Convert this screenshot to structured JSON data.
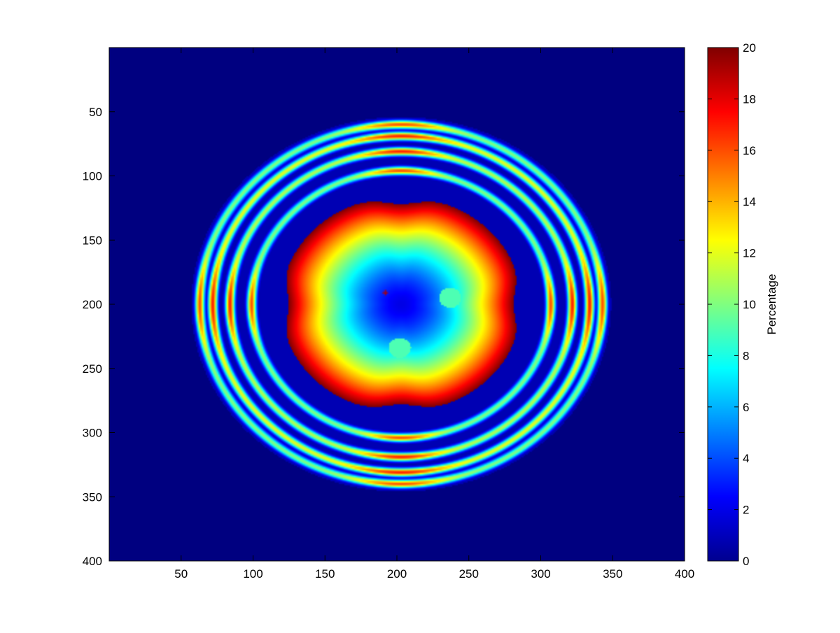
{
  "chart_data": {
    "type": "heatmap",
    "title": "",
    "xlabel": "",
    "ylabel": "",
    "xlim": [
      1,
      400
    ],
    "ylim": [
      400,
      1
    ],
    "y_axis_direction": "reversed",
    "x_ticks": [
      50,
      100,
      150,
      200,
      250,
      300,
      350,
      400
    ],
    "y_ticks": [
      50,
      100,
      150,
      200,
      250,
      300,
      350,
      400
    ],
    "grid": false,
    "colormap": "jet",
    "background_value": 0,
    "colorbar": {
      "label": "Percentage",
      "range": [
        0,
        20
      ],
      "ticks": [
        0,
        2,
        4,
        6,
        8,
        10,
        12,
        14,
        16,
        18,
        20
      ]
    },
    "pattern": {
      "description_units": "pixel index of the 400x400 image",
      "center": [
        203,
        200
      ],
      "outer_radius": 146,
      "center_marker": {
        "x": 192,
        "y": 191,
        "color": "#b00000"
      },
      "rings": [
        {
          "radius": 140,
          "peak_value": 10,
          "peak_at_cardinals": 16
        },
        {
          "radius": 131,
          "peak_value": 12,
          "peak_at_cardinals": 17
        },
        {
          "radius": 119,
          "peak_value": 11,
          "peak_at_cardinals": 17
        },
        {
          "radius": 104,
          "peak_value": 10,
          "peak_at_cardinals": 16
        }
      ],
      "inner_disk": {
        "radius": 84,
        "center_value": 2,
        "edge_value": 20,
        "notches": [
          "top",
          "bottom",
          "left",
          "right"
        ]
      },
      "spots": [
        {
          "x": 237,
          "y": 195,
          "value": 9
        },
        {
          "x": 202,
          "y": 234,
          "value": 9
        }
      ]
    }
  }
}
